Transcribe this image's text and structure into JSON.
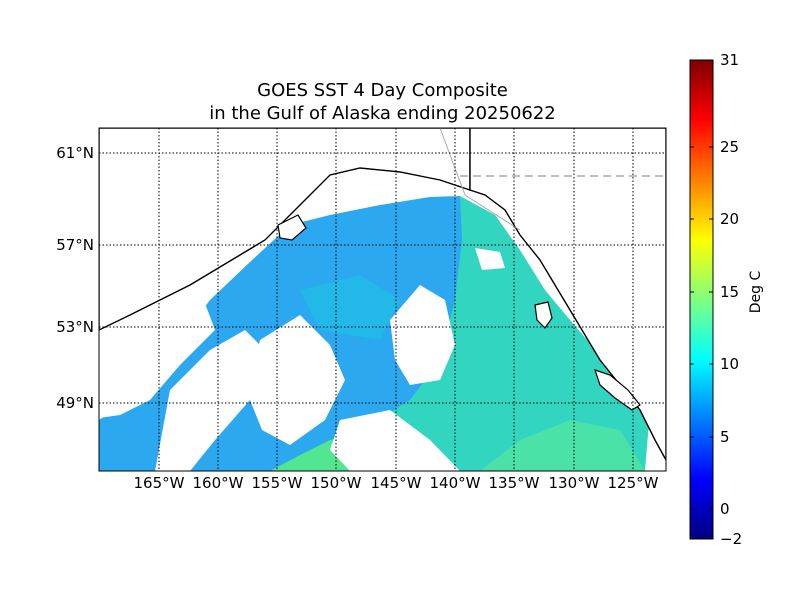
{
  "title_line1": "GOES SST 4 Day Composite",
  "title_line2": "in the Gulf of Alaska ending 20250622",
  "lat_labels": [
    "61°N",
    "57°N",
    "53°N",
    "49°N"
  ],
  "lon_labels": [
    "165°W",
    "160°W",
    "155°W",
    "150°W",
    "145°W",
    "140°W",
    "135°W",
    "130°W",
    "125°W"
  ],
  "colorbar": {
    "title": "Deg C",
    "ticks": [
      "31",
      "25",
      "20",
      "15",
      "10",
      "5",
      "0",
      "−2"
    ],
    "tick_values": [
      31,
      25,
      20,
      15,
      10,
      5,
      0,
      -2
    ],
    "min": -2,
    "max": 31,
    "colormap": "jet"
  },
  "colors": {
    "ocean_typical": "#2fd3c4",
    "ocean_cold": "#1a9dff",
    "coastline": "#000000",
    "cloud_mask": "#ffffff",
    "grid": "#000000",
    "border_dashed": "#999999"
  }
}
